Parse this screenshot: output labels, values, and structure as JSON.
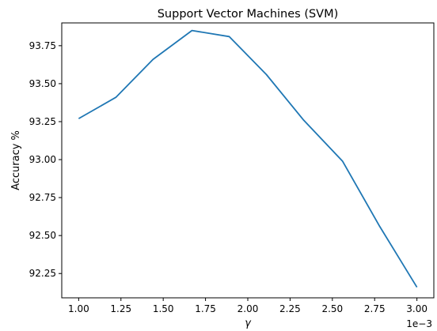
{
  "chart_data": {
    "type": "line",
    "title": "Support Vector Machines (SVM)",
    "xlabel": "γ",
    "ylabel": "Accuracy %",
    "x_offset_text": "1e−3",
    "x_scale": 0.001,
    "xlim": [
      0.0009,
      0.0031
    ],
    "ylim": [
      92.09,
      93.9
    ],
    "xticks": [
      {
        "value": 0.001,
        "label": "1.00"
      },
      {
        "value": 0.00125,
        "label": "1.25"
      },
      {
        "value": 0.0015,
        "label": "1.50"
      },
      {
        "value": 0.00175,
        "label": "1.75"
      },
      {
        "value": 0.002,
        "label": "2.00"
      },
      {
        "value": 0.00225,
        "label": "2.25"
      },
      {
        "value": 0.0025,
        "label": "2.50"
      },
      {
        "value": 0.00275,
        "label": "2.75"
      },
      {
        "value": 0.003,
        "label": "3.00"
      }
    ],
    "yticks": [
      {
        "value": 92.25,
        "label": "92.25"
      },
      {
        "value": 92.5,
        "label": "92.50"
      },
      {
        "value": 92.75,
        "label": "92.75"
      },
      {
        "value": 93.0,
        "label": "93.00"
      },
      {
        "value": 93.25,
        "label": "93.25"
      },
      {
        "value": 93.5,
        "label": "93.50"
      },
      {
        "value": 93.75,
        "label": "93.75"
      }
    ],
    "grid": false,
    "series": [
      {
        "color": "#1f77b4",
        "x": [
          0.001,
          0.00122,
          0.00144,
          0.00167,
          0.00189,
          0.00211,
          0.00233,
          0.00256,
          0.00278,
          0.003
        ],
        "y": [
          93.27,
          93.41,
          93.66,
          93.85,
          93.81,
          93.56,
          93.26,
          92.99,
          92.56,
          92.16
        ]
      }
    ]
  }
}
